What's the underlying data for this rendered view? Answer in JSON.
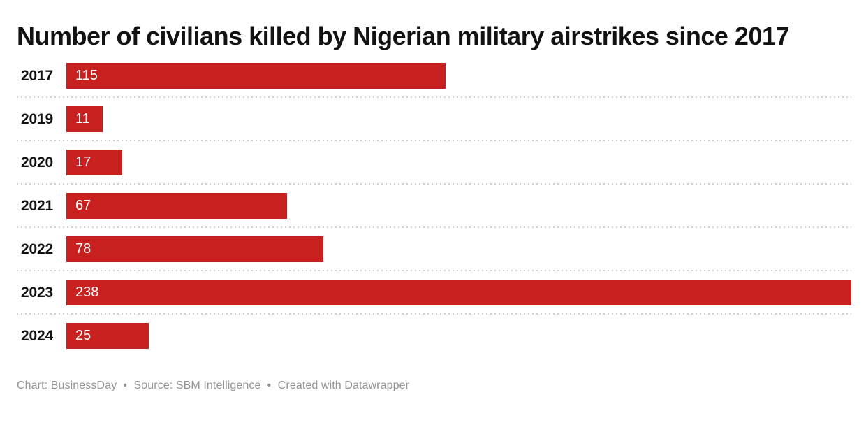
{
  "chart_data": {
    "type": "bar",
    "orientation": "horizontal",
    "title": "Number of civilians killed by Nigerian military airstrikes since 2017",
    "categories": [
      "2017",
      "2019",
      "2020",
      "2021",
      "2022",
      "2023",
      "2024"
    ],
    "values": [
      115,
      11,
      17,
      67,
      78,
      238,
      25
    ],
    "xlabel": "",
    "ylabel": "",
    "xlim": [
      0,
      238
    ],
    "grid": false,
    "legend": false,
    "value_labels_position": "inside-start",
    "row_separator_style": "dotted"
  },
  "footer": {
    "segments": [
      "Chart: BusinessDay",
      "Source: SBM Intelligence",
      "Created with Datawrapper"
    ],
    "bullet": "•"
  },
  "colors": {
    "bar": "#c8201e",
    "title": "#121212",
    "category": "#121212",
    "value": "#ffffff",
    "separator": "#d2d2d2",
    "footer": "#949494",
    "background": "#ffffff"
  }
}
